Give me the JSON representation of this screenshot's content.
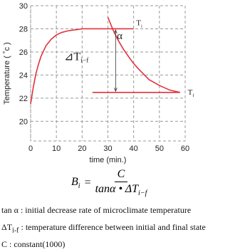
{
  "chart_data": {
    "type": "line",
    "x_label": "time (min.)",
    "y_label": "Temperature ( ˚c )",
    "xlim": [
      0,
      60
    ],
    "xticks": [
      0,
      10,
      20,
      30,
      40,
      50,
      60
    ],
    "ylim": [
      18.3,
      30
    ],
    "yticks": [
      20,
      22,
      24,
      26,
      28,
      30
    ],
    "grid": true,
    "series": [
      {
        "color": "#e0323c",
        "x": [
          0,
          1,
          2,
          3,
          4,
          6,
          8,
          10,
          12,
          14,
          16,
          18,
          20,
          25,
          30,
          35,
          40
        ],
        "values": [
          21.5,
          22.9,
          24.06,
          24.9,
          25.6,
          26.55,
          27.1,
          27.47,
          27.68,
          27.8,
          27.88,
          27.93,
          28,
          28,
          28,
          28,
          28
        ]
      },
      {
        "color": "#e0323c",
        "x": [
          30,
          32,
          34,
          36,
          38,
          40,
          42,
          46,
          50,
          54,
          58
        ],
        "values": [
          29,
          27.9,
          27,
          26.25,
          25.6,
          25,
          24.5,
          23.6,
          23.1,
          22.7,
          22.5
        ]
      },
      {
        "color": "#e0323c",
        "x": [
          24,
          58
        ],
        "values": [
          22.5,
          22.5
        ]
      }
    ],
    "annotations": {
      "ti": "T",
      "ti_sub": "i",
      "tf": "T",
      "tf_sub": "f",
      "alpha": "α",
      "delta": "⊿T",
      "delta_sub": "i−f"
    }
  },
  "formula": {
    "b": "B",
    "b_sub": "i",
    "eq": "=",
    "num": "C",
    "den": "tanα • ΔT",
    "den_sub": "i−f"
  },
  "definitions": [
    {
      "term": "tan α",
      "text": " : initial decrease rate of microclimate temperature"
    },
    {
      "term": "ΔT",
      "sub": "i-f",
      "text": " : temperature difference between initial and final state"
    },
    {
      "term": "C",
      "text": " : constant(1000)"
    }
  ]
}
